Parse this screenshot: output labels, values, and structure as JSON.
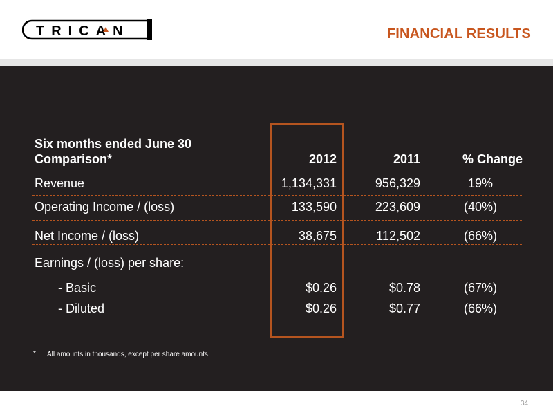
{
  "header": {
    "logo_text": "TRICAN",
    "title": "FINANCIAL RESULTS"
  },
  "table": {
    "title_line1": "Six months ended June 30",
    "title_line2": "Comparison*",
    "columns": [
      "2012",
      "2011",
      "% Change"
    ],
    "rows": [
      {
        "label": "Revenue",
        "v2012": "1,134,331",
        "v2011": "956,329",
        "change": "19%"
      },
      {
        "label": "Operating Income / (loss)",
        "v2012": "133,590",
        "v2011": "223,609",
        "change": "(40%)"
      },
      {
        "label": "Net Income / (loss)",
        "v2012": "38,675",
        "v2011": "112,502",
        "change": "(66%)"
      },
      {
        "label": "Earnings / (loss)  per share:",
        "v2012": "",
        "v2011": "",
        "change": ""
      },
      {
        "label": "- Basic",
        "v2012": "$0.26",
        "v2011": "$0.78",
        "change": "(67%)"
      },
      {
        "label": "- Diluted",
        "v2012": "$0.26",
        "v2011": "$0.77",
        "change": "(66%)"
      }
    ]
  },
  "footnote": {
    "mark": "*",
    "text": "All amounts in thousands, except per share amounts."
  },
  "page_number": "34",
  "colors": {
    "accent": "#c8561e",
    "panel": "#231f20",
    "band": "#e6e6e6"
  }
}
